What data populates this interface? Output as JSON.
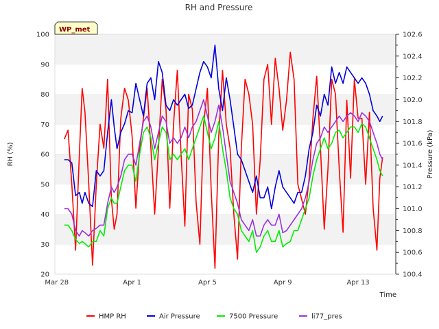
{
  "chart_data": {
    "type": "line",
    "title": "RH and Pressure",
    "xlabel": "Time",
    "ylabel": "RH (%)",
    "y2label": "Pressure (kPa)",
    "badge": "WP_met",
    "ylim": [
      20,
      100
    ],
    "y2lim": [
      100.4,
      102.6
    ],
    "xlim": [
      -0.1,
      18.0
    ],
    "x_unit": "days since Mar 28",
    "yticks": [
      20,
      30,
      40,
      50,
      60,
      70,
      80,
      90,
      100
    ],
    "y2ticks": [
      100.4,
      100.6,
      100.8,
      101.0,
      101.2,
      101.4,
      101.6,
      101.8,
      102.0,
      102.2,
      102.4,
      102.6
    ],
    "xticks": [
      {
        "x": 0,
        "label": "Mar 28"
      },
      {
        "x": 4,
        "label": "Apr 1"
      },
      {
        "x": 8,
        "label": "Apr 5"
      },
      {
        "x": 12,
        "label": "Apr 9"
      },
      {
        "x": 16,
        "label": "Apr 13"
      }
    ],
    "grid": "horizontal bands",
    "legend_position": "bottom",
    "series": [
      {
        "name": "HMP RH",
        "axis": "left",
        "color": "#ff0000",
        "x": [
          0.4,
          0.6,
          0.8,
          1.0,
          1.2,
          1.35,
          1.5,
          1.7,
          1.9,
          2.1,
          2.3,
          2.5,
          2.7,
          2.9,
          3.05,
          3.2,
          3.4,
          3.6,
          3.8,
          4.0,
          4.2,
          4.4,
          4.6,
          4.8,
          5.0,
          5.2,
          5.4,
          5.6,
          5.8,
          6.0,
          6.2,
          6.4,
          6.6,
          6.8,
          7.0,
          7.2,
          7.4,
          7.6,
          7.8,
          8.0,
          8.2,
          8.4,
          8.6,
          8.8,
          9.0,
          9.2,
          9.4,
          9.6,
          9.8,
          10.0,
          10.2,
          10.4,
          10.6,
          10.8,
          11.0,
          11.2,
          11.4,
          11.6,
          11.8,
          12.0,
          12.2,
          12.4,
          12.6,
          12.8,
          13.0,
          13.2,
          13.4,
          13.6,
          13.8,
          14.0,
          14.2,
          14.4,
          14.6,
          14.8,
          15.0,
          15.2,
          15.4,
          15.6,
          15.8,
          16.0,
          16.2,
          16.4,
          16.6,
          16.8,
          17.0,
          17.15,
          17.3
        ],
        "values": [
          65,
          68,
          50,
          28,
          60,
          82,
          74,
          50,
          23,
          50,
          70,
          62,
          85,
          45,
          35,
          40,
          72,
          82,
          78,
          66,
          42,
          62,
          72,
          82,
          62,
          40,
          62,
          85,
          75,
          42,
          70,
          88,
          60,
          36,
          80,
          75,
          44,
          30,
          70,
          82,
          48,
          22,
          66,
          88,
          70,
          62,
          40,
          25,
          62,
          85,
          80,
          70,
          40,
          58,
          85,
          90,
          70,
          92,
          82,
          68,
          78,
          94,
          85,
          50,
          45,
          40,
          52,
          72,
          86,
          62,
          35,
          55,
          85,
          80,
          55,
          34,
          78,
          52,
          85,
          72,
          72,
          50,
          74,
          42,
          28,
          52,
          59
        ]
      },
      {
        "name": "Air Pressure",
        "axis": "right",
        "color": "#0000dd",
        "x": [
          0.4,
          0.6,
          0.8,
          1.0,
          1.2,
          1.35,
          1.5,
          1.7,
          1.9,
          2.1,
          2.3,
          2.5,
          2.7,
          2.9,
          3.05,
          3.2,
          3.4,
          3.6,
          3.8,
          4.0,
          4.2,
          4.4,
          4.6,
          4.8,
          5.0,
          5.2,
          5.4,
          5.6,
          5.8,
          6.0,
          6.2,
          6.4,
          6.6,
          6.8,
          7.0,
          7.2,
          7.4,
          7.6,
          7.8,
          8.0,
          8.2,
          8.4,
          8.6,
          8.8,
          9.0,
          9.2,
          9.4,
          9.6,
          9.8,
          10.0,
          10.2,
          10.4,
          10.6,
          10.8,
          11.0,
          11.2,
          11.4,
          11.6,
          11.8,
          12.0,
          12.2,
          12.4,
          12.6,
          12.8,
          13.0,
          13.2,
          13.4,
          13.6,
          13.8,
          14.0,
          14.2,
          14.4,
          14.6,
          14.8,
          15.0,
          15.2,
          15.4,
          15.6,
          15.8,
          16.0,
          16.2,
          16.4,
          16.6,
          16.8,
          17.0,
          17.15,
          17.3
        ],
        "values": [
          101.45,
          101.45,
          101.42,
          101.12,
          101.15,
          101.05,
          101.15,
          101.05,
          101.02,
          101.35,
          101.3,
          101.35,
          101.7,
          102.0,
          101.75,
          101.55,
          101.7,
          101.78,
          101.9,
          101.88,
          102.15,
          102.0,
          101.85,
          102.15,
          102.2,
          102.0,
          102.35,
          102.25,
          101.95,
          101.9,
          102.0,
          101.95,
          102.0,
          102.05,
          101.92,
          101.95,
          102.1,
          102.25,
          102.35,
          102.3,
          102.2,
          102.5,
          102.1,
          101.9,
          102.2,
          102.0,
          101.75,
          101.5,
          101.45,
          101.35,
          101.25,
          101.15,
          101.3,
          101.1,
          101.1,
          101.2,
          101.0,
          101.2,
          101.35,
          101.2,
          101.15,
          101.1,
          101.05,
          101.15,
          101.15,
          101.3,
          101.55,
          101.7,
          101.95,
          101.85,
          102.05,
          101.95,
          102.3,
          102.15,
          102.25,
          102.15,
          102.3,
          102.25,
          102.2,
          102.15,
          102.2,
          102.15,
          102.05,
          101.9,
          101.85,
          101.8,
          101.85
        ]
      },
      {
        "name": "7500 Pressure",
        "axis": "right",
        "color": "#00ee00",
        "x": [
          0.4,
          0.6,
          0.8,
          1.0,
          1.2,
          1.35,
          1.5,
          1.7,
          1.9,
          2.1,
          2.3,
          2.5,
          2.7,
          2.9,
          3.05,
          3.2,
          3.4,
          3.6,
          3.8,
          4.0,
          4.2,
          4.4,
          4.6,
          4.8,
          5.0,
          5.2,
          5.4,
          5.6,
          5.8,
          6.0,
          6.2,
          6.4,
          6.6,
          6.8,
          7.0,
          7.2,
          7.4,
          7.6,
          7.8,
          8.0,
          8.2,
          8.4,
          8.6,
          8.8,
          9.0,
          9.2,
          9.4,
          9.6,
          9.8,
          10.0,
          10.2,
          10.4,
          10.6,
          10.8,
          11.0,
          11.2,
          11.4,
          11.6,
          11.8,
          12.0,
          12.2,
          12.4,
          12.6,
          12.8,
          13.0,
          13.2,
          13.4,
          13.6,
          13.8,
          14.0,
          14.2,
          14.4,
          14.6,
          14.8,
          15.0,
          15.2,
          15.4,
          15.6,
          15.8,
          16.0,
          16.2,
          16.4,
          16.6,
          16.8,
          17.0,
          17.15,
          17.3
        ],
        "values": [
          100.85,
          100.85,
          100.8,
          100.72,
          100.68,
          100.7,
          100.68,
          100.65,
          100.7,
          100.7,
          100.8,
          100.75,
          101.0,
          101.1,
          101.05,
          101.05,
          101.2,
          101.35,
          101.4,
          101.4,
          101.25,
          101.5,
          101.7,
          101.75,
          101.65,
          101.45,
          101.6,
          101.75,
          101.7,
          101.45,
          101.5,
          101.45,
          101.5,
          101.55,
          101.45,
          101.55,
          101.65,
          101.75,
          101.85,
          101.7,
          101.55,
          101.65,
          101.8,
          101.55,
          101.35,
          101.1,
          101.0,
          100.95,
          100.8,
          100.75,
          100.7,
          100.8,
          100.6,
          100.65,
          100.75,
          100.8,
          100.7,
          100.7,
          100.8,
          100.65,
          100.68,
          100.7,
          100.8,
          100.8,
          100.9,
          101.0,
          101.1,
          101.3,
          101.45,
          101.55,
          101.65,
          101.55,
          101.6,
          101.7,
          101.72,
          101.65,
          101.7,
          101.75,
          101.75,
          101.7,
          101.78,
          101.75,
          101.65,
          101.55,
          101.45,
          101.35,
          101.3
        ]
      },
      {
        "name": "li77_pres",
        "axis": "right",
        "color": "#9933dd",
        "x": [
          0.4,
          0.6,
          0.8,
          1.0,
          1.2,
          1.35,
          1.5,
          1.7,
          1.9,
          2.1,
          2.3,
          2.5,
          2.7,
          2.9,
          3.05,
          3.2,
          3.4,
          3.6,
          3.8,
          4.0,
          4.2,
          4.4,
          4.6,
          4.8,
          5.0,
          5.2,
          5.4,
          5.6,
          5.8,
          6.0,
          6.2,
          6.4,
          6.6,
          6.8,
          7.0,
          7.2,
          7.4,
          7.6,
          7.8,
          8.0,
          8.2,
          8.4,
          8.6,
          8.8,
          9.0,
          9.2,
          9.4,
          9.6,
          9.8,
          10.0,
          10.2,
          10.4,
          10.6,
          10.8,
          11.0,
          11.2,
          11.4,
          11.6,
          11.8,
          12.0,
          12.2,
          12.4,
          12.6,
          12.8,
          13.0,
          13.2,
          13.4,
          13.6,
          13.8,
          14.0,
          14.2,
          14.4,
          14.6,
          14.8,
          15.0,
          15.2,
          15.4,
          15.6,
          15.8,
          16.0,
          16.2,
          16.4,
          16.6,
          16.8,
          17.0,
          17.15,
          17.3
        ],
        "values": [
          101.0,
          101.0,
          100.95,
          100.8,
          100.75,
          100.8,
          100.78,
          100.75,
          100.8,
          100.82,
          100.85,
          100.85,
          101.05,
          101.2,
          101.15,
          101.2,
          101.3,
          101.45,
          101.5,
          101.5,
          101.4,
          101.6,
          101.8,
          101.85,
          101.75,
          101.55,
          101.7,
          101.85,
          101.8,
          101.6,
          101.65,
          101.6,
          101.65,
          101.75,
          101.65,
          101.75,
          101.8,
          101.9,
          102.0,
          101.85,
          101.7,
          101.8,
          101.95,
          101.75,
          101.5,
          101.25,
          101.15,
          101.05,
          100.9,
          100.85,
          100.8,
          100.9,
          100.75,
          100.75,
          100.85,
          100.9,
          100.85,
          100.85,
          100.95,
          100.78,
          100.8,
          100.85,
          100.9,
          100.95,
          101.0,
          101.1,
          101.25,
          101.45,
          101.6,
          101.65,
          101.75,
          101.7,
          101.75,
          101.8,
          101.85,
          101.8,
          101.85,
          101.88,
          101.85,
          101.8,
          101.88,
          101.85,
          101.8,
          101.7,
          101.6,
          101.5,
          101.45
        ]
      }
    ]
  }
}
